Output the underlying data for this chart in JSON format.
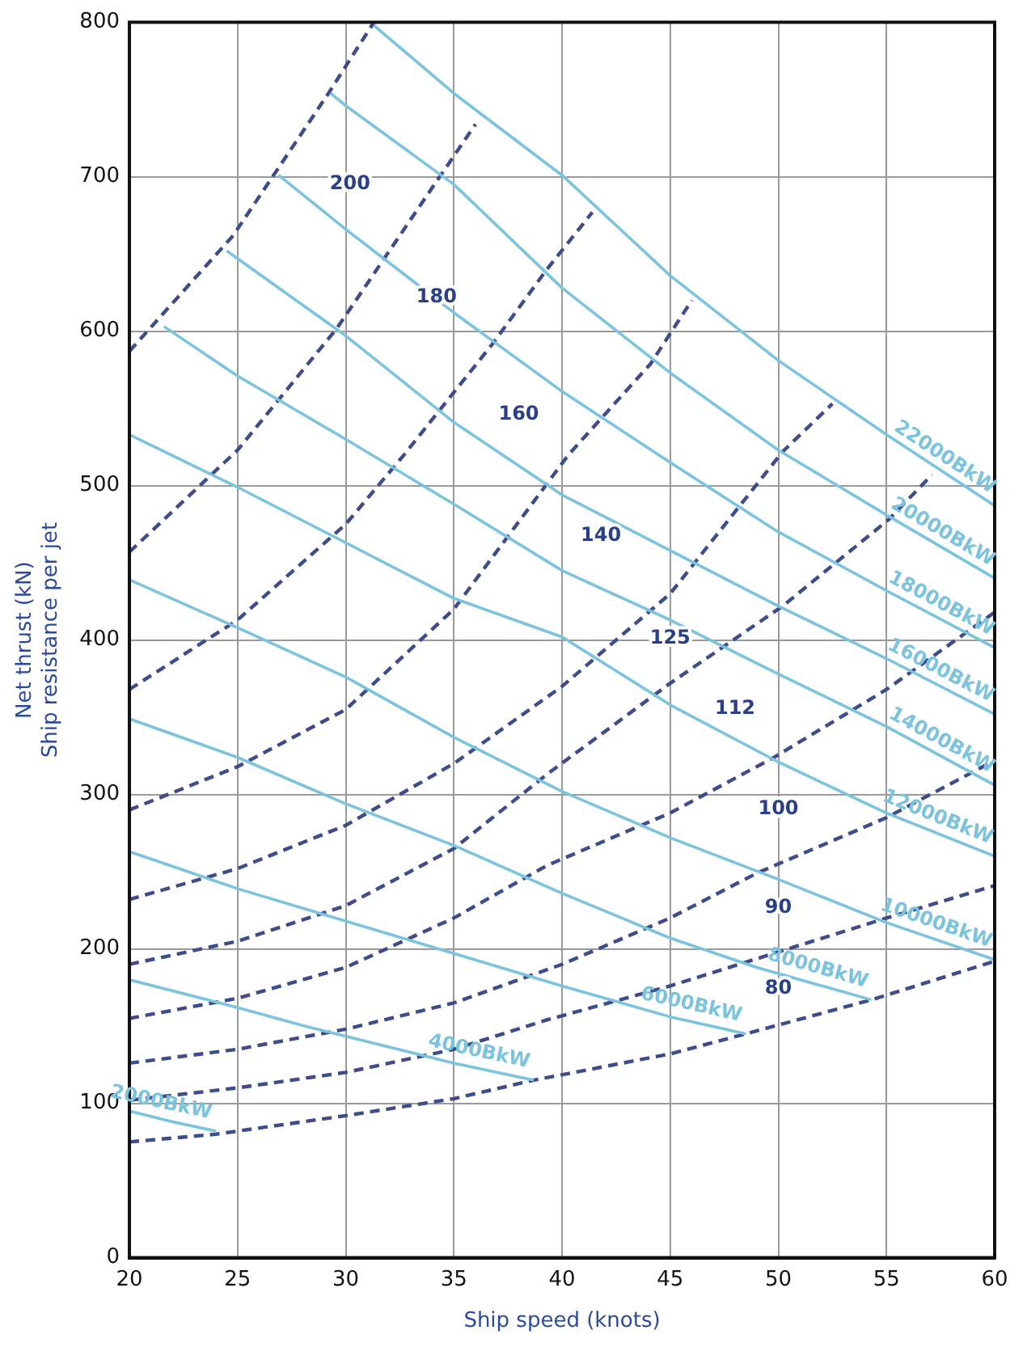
{
  "chart_data": {
    "type": "line",
    "xlabel": "Ship speed (knots)",
    "ylabel": "Net thrust (kN)\nShip resistance per jet",
    "xlim": [
      20,
      60
    ],
    "xticks": [
      20,
      25,
      30,
      35,
      40,
      45,
      50,
      55,
      60
    ],
    "ylim": [
      0,
      800
    ],
    "yticks": [
      0,
      100,
      200,
      300,
      400,
      500,
      600,
      700,
      800
    ],
    "grid": true,
    "legend": false,
    "marker": "none",
    "series": [
      {
        "name": "2000BkW",
        "color": "#7cc3de",
        "line_style": "solid",
        "x": [
          20,
          22,
          24
        ],
        "values": [
          95,
          88,
          82
        ]
      },
      {
        "name": "4000BkW",
        "color": "#7cc3de",
        "line_style": "solid",
        "x": [
          20,
          25,
          28.1,
          35,
          38.7
        ],
        "values": [
          180,
          162,
          150,
          126,
          115
        ]
      },
      {
        "name": "6000BkW",
        "color": "#7cc3de",
        "line_style": "solid",
        "x": [
          20,
          25,
          30,
          35,
          40,
          45,
          48.5
        ],
        "values": [
          263,
          239,
          218,
          197,
          176,
          156,
          145
        ]
      },
      {
        "name": "8000BkW",
        "color": "#7cc3de",
        "line_style": "solid",
        "x": [
          20,
          25,
          30,
          35,
          40,
          45,
          49,
          54.3
        ],
        "values": [
          349,
          324,
          294,
          267,
          236,
          207,
          188,
          167
        ]
      },
      {
        "name": "10000BkW",
        "color": "#7cc3de",
        "line_style": "solid",
        "x": [
          20,
          25,
          30,
          35,
          40,
          45,
          50,
          55,
          60
        ],
        "values": [
          439,
          408,
          376,
          337,
          302,
          272,
          245,
          217,
          193
        ]
      },
      {
        "name": "12000BkW",
        "color": "#7cc3de",
        "line_style": "solid",
        "x": [
          20,
          25,
          30,
          35,
          40,
          45,
          50,
          55,
          60
        ],
        "values": [
          533,
          499,
          463,
          427,
          402,
          358,
          321,
          288,
          260
        ]
      },
      {
        "name": "14000BkW",
        "color": "#7cc3de",
        "line_style": "solid",
        "x": [
          21.6,
          25,
          30,
          35,
          40,
          45,
          50,
          55,
          60
        ],
        "values": [
          603,
          571,
          530,
          488,
          445,
          413,
          378,
          344,
          306
        ]
      },
      {
        "name": "16000BkW",
        "color": "#7cc3de",
        "line_style": "solid",
        "x": [
          24.5,
          30,
          35,
          40,
          45,
          50,
          55,
          60
        ],
        "values": [
          652,
          597,
          541,
          494,
          458,
          422,
          388,
          352
        ]
      },
      {
        "name": "18000BkW",
        "color": "#7cc3de",
        "line_style": "solid",
        "x": [
          26.9,
          30,
          35,
          40,
          45,
          50,
          55,
          60
        ],
        "values": [
          701,
          666,
          612,
          561,
          515,
          470,
          432,
          395
        ]
      },
      {
        "name": "20000BkW",
        "color": "#7cc3de",
        "line_style": "solid",
        "x": [
          29.3,
          30,
          35,
          40,
          45,
          50,
          55,
          60
        ],
        "values": [
          754,
          746,
          695,
          628,
          573,
          523,
          481,
          440
        ]
      },
      {
        "name": "22000BkW",
        "color": "#7cc3de",
        "line_style": "solid",
        "x": [
          31.3,
          35,
          40,
          45,
          50,
          55,
          60
        ],
        "values": [
          798,
          754,
          701,
          636,
          581,
          533,
          487
        ]
      },
      {
        "color": "#3f4c8c",
        "line_style": "dashed",
        "x": [
          20,
          24,
          30,
          35,
          38.7,
          45,
          48.5,
          54.3,
          60
        ],
        "values": [
          75,
          80,
          92,
          103,
          115,
          132,
          145,
          167,
          192
        ]
      },
      {
        "color": "#3f4c8c",
        "line_style": "dashed",
        "x": [
          20,
          25,
          30,
          35,
          39.3,
          45,
          50,
          55,
          60
        ],
        "values": [
          102,
          110,
          120,
          135,
          154,
          176,
          198,
          220,
          241
        ]
      },
      {
        "color": "#3f4c8c",
        "line_style": "dashed",
        "x": [
          20,
          25,
          30,
          35,
          40,
          45,
          49,
          55,
          60
        ],
        "values": [
          126,
          135,
          148,
          165,
          190,
          220,
          249,
          285,
          322
        ]
      },
      {
        "color": "#3f4c8c",
        "line_style": "dashed",
        "x": [
          20,
          25,
          30,
          35,
          39.3,
          45,
          49.8,
          55,
          60
        ],
        "values": [
          155,
          168,
          188,
          220,
          254,
          288,
          324,
          368,
          418
        ]
      },
      {
        "color": "#3f4c8c",
        "line_style": "dashed",
        "x": [
          20,
          25,
          30,
          35,
          39.3,
          45,
          50.2,
          55.1,
          57.1
        ],
        "values": [
          190,
          205,
          228,
          265,
          313,
          372,
          422,
          478,
          507
        ]
      },
      {
        "color": "#3f4c8c",
        "line_style": "dashed",
        "x": [
          20,
          25,
          30,
          35,
          40,
          45,
          50.2,
          52.5
        ],
        "values": [
          232,
          252,
          280,
          320,
          370,
          430,
          522,
          553
        ]
      },
      {
        "color": "#3f4c8c",
        "line_style": "dashed",
        "x": [
          20,
          25,
          30,
          35,
          40.3,
          44.1,
          46
        ],
        "values": [
          290,
          318,
          355,
          420,
          520,
          579,
          620
        ]
      },
      {
        "color": "#3f4c8c",
        "line_style": "dashed",
        "x": [
          20,
          25,
          30,
          32.7,
          36.8,
          39.3,
          41.4
        ],
        "values": [
          368,
          413,
          475,
          520,
          592,
          640,
          677
        ]
      },
      {
        "color": "#3f4c8c",
        "line_style": "dashed",
        "x": [
          20,
          25,
          29.6,
          34.1,
          36
        ],
        "values": [
          457,
          523,
          602,
          695,
          734
        ]
      },
      {
        "color": "#3f4c8c",
        "line_style": "dashed",
        "x": [
          20,
          24.8,
          29.2,
          31.3
        ],
        "values": [
          587,
          662,
          754,
          800
        ]
      }
    ],
    "annotations": [
      "200",
      "180",
      "160",
      "140",
      "125",
      "112",
      "100",
      "90",
      "80"
    ]
  }
}
